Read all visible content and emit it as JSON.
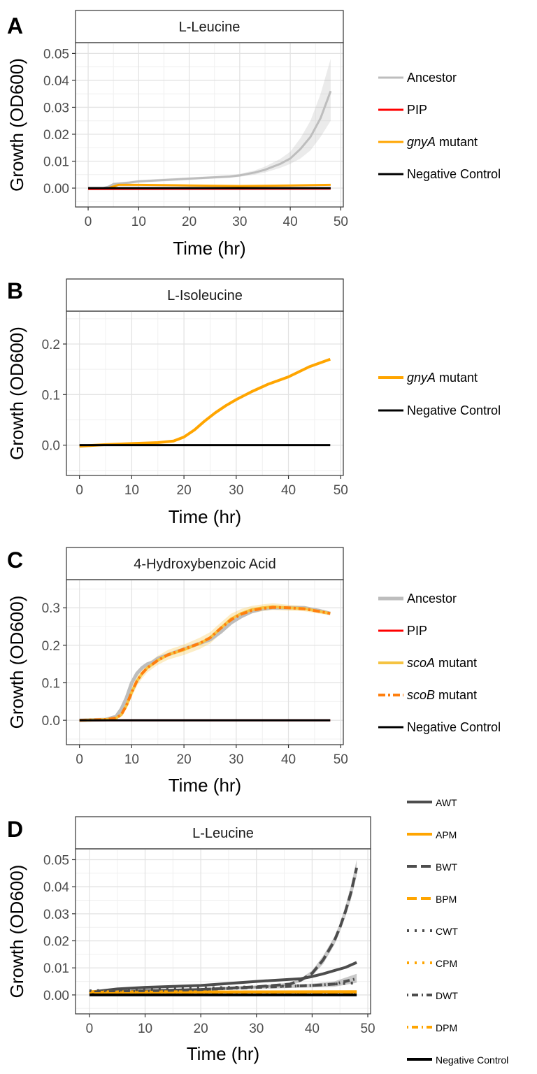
{
  "chart_data": [
    {
      "letter": "A",
      "type": "line",
      "title": "L-Leucine",
      "xlabel": "Time (hr)",
      "ylabel": "Growth (OD600)",
      "xlim": [
        -2.5,
        50.5
      ],
      "ylim": [
        -0.007,
        0.054
      ],
      "xticks": [
        0,
        10,
        20,
        30,
        40,
        50
      ],
      "yticks": [
        0,
        0.01,
        0.02,
        0.03,
        0.04,
        0.05
      ],
      "ytick_labels": [
        "0.00",
        "0.01",
        "0.02",
        "0.03",
        "0.04",
        "0.05"
      ],
      "grid": true,
      "legend_position": "right",
      "series": [
        {
          "name": "Ancestor",
          "color": "#bdbdbd",
          "width": 3,
          "x": [
            0,
            3,
            4,
            5,
            8,
            10,
            15,
            20,
            25,
            28,
            30,
            33,
            35,
            38,
            40,
            42,
            44,
            46,
            48
          ],
          "y": [
            0,
            0,
            0.0005,
            0.0015,
            0.002,
            0.0025,
            0.003,
            0.0035,
            0.004,
            0.0043,
            0.0047,
            0.0058,
            0.0068,
            0.009,
            0.011,
            0.0145,
            0.019,
            0.026,
            0.036
          ],
          "band_lower": [
            0,
            0,
            0.0003,
            0.001,
            0.0015,
            0.002,
            0.0025,
            0.003,
            0.0035,
            0.0038,
            0.0042,
            0.005,
            0.0058,
            0.0075,
            0.009,
            0.011,
            0.014,
            0.019,
            0.025
          ],
          "band_upper": [
            0,
            0,
            0.0007,
            0.002,
            0.0025,
            0.003,
            0.0035,
            0.004,
            0.0045,
            0.0048,
            0.0053,
            0.0066,
            0.008,
            0.0108,
            0.0135,
            0.0185,
            0.025,
            0.035,
            0.048
          ]
        },
        {
          "name": "PIP",
          "color": "#ff0000",
          "width": 3,
          "x": [
            0,
            48
          ],
          "y": [
            -0.0003,
            -0.0002
          ]
        },
        {
          "name": "gnyA mutant",
          "name_italic": "gnyA",
          "name_rest": " mutant",
          "color": "#ffa500",
          "width": 3,
          "x": [
            0,
            4,
            6,
            10,
            20,
            30,
            40,
            48
          ],
          "y": [
            0,
            0,
            0.0012,
            0.0012,
            0.001,
            0.0008,
            0.001,
            0.0012
          ]
        },
        {
          "name": "Negative Control",
          "color": "#000000",
          "width": 3,
          "x": [
            0,
            48
          ],
          "y": [
            0,
            0
          ]
        }
      ]
    },
    {
      "letter": "B",
      "type": "line",
      "title": "L-Isoleucine",
      "xlabel": "Time (hr)",
      "ylabel": "Growth (OD600)",
      "xlim": [
        -2.5,
        50.5
      ],
      "ylim": [
        -0.06,
        0.265
      ],
      "xticks": [
        0,
        10,
        20,
        30,
        40,
        50
      ],
      "yticks": [
        0,
        0.1,
        0.2
      ],
      "ytick_labels": [
        "0.0",
        "0.1",
        "0.2"
      ],
      "grid": true,
      "legend_position": "right",
      "series": [
        {
          "name": "gnyA mutant",
          "name_italic": "gnyA",
          "name_rest": " mutant",
          "color": "#ffa500",
          "width": 4,
          "x": [
            0,
            5,
            10,
            15,
            18,
            20,
            22,
            24,
            26,
            28,
            30,
            33,
            36,
            40,
            44,
            48
          ],
          "y": [
            -0.002,
            0.001,
            0.003,
            0.005,
            0.008,
            0.016,
            0.03,
            0.048,
            0.064,
            0.078,
            0.09,
            0.106,
            0.12,
            0.135,
            0.155,
            0.17
          ]
        },
        {
          "name": "Negative Control",
          "color": "#000000",
          "width": 3,
          "x": [
            0,
            48
          ],
          "y": [
            0,
            0
          ]
        }
      ]
    },
    {
      "letter": "C",
      "type": "line",
      "title": "4-Hydroxybenzoic Acid",
      "xlabel": "Time (hr)",
      "ylabel": "Growth (OD600)",
      "xlim": [
        -2.5,
        50.5
      ],
      "ylim": [
        -0.065,
        0.375
      ],
      "xticks": [
        0,
        10,
        20,
        30,
        40,
        50
      ],
      "yticks": [
        0,
        0.1,
        0.2,
        0.3
      ],
      "ytick_labels": [
        "0.0",
        "0.1",
        "0.2",
        "0.3"
      ],
      "grid": true,
      "legend_position": "right",
      "series": [
        {
          "name": "Ancestor",
          "color": "#bdbdbd",
          "width": 5,
          "x": [
            0,
            5,
            7,
            8,
            9,
            10,
            11,
            12,
            13,
            14,
            15,
            17,
            20,
            23,
            25,
            27,
            29,
            31,
            33,
            35,
            37,
            40,
            43,
            46,
            48
          ],
          "y": [
            0,
            0.002,
            0.01,
            0.03,
            0.06,
            0.1,
            0.125,
            0.14,
            0.15,
            0.155,
            0.165,
            0.175,
            0.19,
            0.205,
            0.215,
            0.235,
            0.26,
            0.277,
            0.29,
            0.297,
            0.3,
            0.3,
            0.3,
            0.292,
            0.285
          ]
        },
        {
          "name": "PIP",
          "color": "#ff0000",
          "width": 3,
          "x": [
            0,
            48
          ],
          "y": [
            0,
            0
          ]
        },
        {
          "name": "scoA mutant",
          "name_italic": "scoA",
          "name_rest": " mutant",
          "color": "#f5c342",
          "width": 4,
          "x": [
            0,
            5,
            7,
            8,
            9,
            10,
            11,
            12,
            13,
            14,
            15,
            17,
            20,
            23,
            25,
            27,
            29,
            31,
            33,
            35,
            37,
            40,
            43,
            46,
            48
          ],
          "y": [
            0,
            0.002,
            0.006,
            0.015,
            0.04,
            0.075,
            0.105,
            0.125,
            0.14,
            0.15,
            0.16,
            0.175,
            0.188,
            0.205,
            0.22,
            0.245,
            0.27,
            0.285,
            0.295,
            0.3,
            0.303,
            0.3,
            0.298,
            0.29,
            0.285
          ],
          "band_lower": [
            0,
            0.001,
            0.004,
            0.01,
            0.03,
            0.062,
            0.092,
            0.112,
            0.128,
            0.138,
            0.148,
            0.162,
            0.174,
            0.19,
            0.205,
            0.23,
            0.256,
            0.273,
            0.285,
            0.291,
            0.294,
            0.292,
            0.291,
            0.284,
            0.28
          ],
          "band_upper": [
            0,
            0.003,
            0.008,
            0.02,
            0.05,
            0.088,
            0.118,
            0.138,
            0.152,
            0.162,
            0.172,
            0.188,
            0.202,
            0.22,
            0.235,
            0.26,
            0.284,
            0.297,
            0.305,
            0.309,
            0.312,
            0.308,
            0.305,
            0.296,
            0.29
          ]
        },
        {
          "name": "scoB mutant",
          "name_italic": "scoB",
          "name_rest": " mutant",
          "color": "#ff7f0e",
          "width": 4,
          "dash": "10 4 3 4",
          "x": [
            0,
            5,
            7,
            8,
            9,
            10,
            11,
            12,
            13,
            14,
            15,
            17,
            20,
            23,
            25,
            27,
            29,
            31,
            33,
            35,
            37,
            40,
            43,
            46,
            48
          ],
          "y": [
            0,
            0.002,
            0.006,
            0.015,
            0.04,
            0.075,
            0.105,
            0.125,
            0.14,
            0.15,
            0.16,
            0.175,
            0.19,
            0.205,
            0.22,
            0.245,
            0.268,
            0.283,
            0.293,
            0.298,
            0.301,
            0.3,
            0.297,
            0.29,
            0.285
          ]
        },
        {
          "name": "Negative Control",
          "color": "#000000",
          "width": 3,
          "x": [
            0,
            48
          ],
          "y": [
            0,
            0
          ]
        }
      ]
    },
    {
      "letter": "D",
      "type": "line",
      "title": "L-Leucine",
      "xlabel": "Time (hr)",
      "ylabel": "Growth (OD600)",
      "xlim": [
        -2.5,
        50.5
      ],
      "ylim": [
        -0.007,
        0.054
      ],
      "xticks": [
        0,
        10,
        20,
        30,
        40,
        50
      ],
      "yticks": [
        0,
        0.01,
        0.02,
        0.03,
        0.04,
        0.05
      ],
      "ytick_labels": [
        "0.00",
        "0.01",
        "0.02",
        "0.03",
        "0.04",
        "0.05"
      ],
      "grid": true,
      "legend_position": "right",
      "series": [
        {
          "name": "AWT",
          "color": "#4d4d4d",
          "width": 4,
          "x": [
            0,
            5,
            10,
            20,
            30,
            38,
            40,
            42,
            44,
            46,
            48
          ],
          "y": [
            0.001,
            0.0022,
            0.0028,
            0.0035,
            0.005,
            0.006,
            0.0068,
            0.0078,
            0.009,
            0.0102,
            0.012
          ]
        },
        {
          "name": "APM",
          "color": "#ffa500",
          "width": 4,
          "x": [
            0,
            48
          ],
          "y": [
            0.001,
            0.0012
          ]
        },
        {
          "name": "BWT",
          "color": "#4d4d4d",
          "width": 4,
          "dash": "14 6",
          "x": [
            0,
            10,
            20,
            30,
            36,
            38,
            40,
            42,
            44,
            45,
            46,
            47,
            48
          ],
          "y": [
            0.001,
            0.0015,
            0.002,
            0.003,
            0.004,
            0.0055,
            0.008,
            0.013,
            0.02,
            0.025,
            0.031,
            0.038,
            0.047
          ],
          "band_lower": [
            0.0005,
            0.001,
            0.0015,
            0.0025,
            0.0035,
            0.0048,
            0.007,
            0.0115,
            0.0185,
            0.0235,
            0.029,
            0.0355,
            0.044
          ],
          "band_upper": [
            0.0015,
            0.002,
            0.0025,
            0.0035,
            0.0045,
            0.0062,
            0.009,
            0.0145,
            0.0215,
            0.0265,
            0.033,
            0.0405,
            0.05
          ]
        },
        {
          "name": "BPM",
          "color": "#ffa500",
          "width": 4,
          "dash": "14 6",
          "x": [
            0,
            48
          ],
          "y": [
            0.0012,
            0.0011
          ]
        },
        {
          "name": "CWT",
          "color": "#4d4d4d",
          "width": 4,
          "dash": "3 8",
          "x": [
            0,
            10,
            20,
            30,
            40,
            44,
            48
          ],
          "y": [
            0.0015,
            0.002,
            0.0025,
            0.003,
            0.0035,
            0.004,
            0.0045
          ]
        },
        {
          "name": "CPM",
          "color": "#ffa500",
          "width": 4,
          "dash": "3 8",
          "x": [
            0,
            48
          ],
          "y": [
            0.0008,
            0.001
          ]
        },
        {
          "name": "DWT",
          "color": "#4d4d4d",
          "width": 4,
          "dash": "2 5 9 5",
          "x": [
            0,
            10,
            20,
            30,
            40,
            44,
            48
          ],
          "y": [
            0.001,
            0.0015,
            0.002,
            0.0028,
            0.0035,
            0.004,
            0.006
          ],
          "band_lower": [
            0.0005,
            0.001,
            0.0015,
            0.0022,
            0.0028,
            0.003,
            0.0045
          ],
          "band_upper": [
            0.0015,
            0.002,
            0.0025,
            0.0034,
            0.0042,
            0.005,
            0.0078
          ]
        },
        {
          "name": "DPM",
          "color": "#ffa500",
          "width": 4,
          "dash": "2 5 9 5",
          "x": [
            0,
            48
          ],
          "y": [
            0.0005,
            0.0006
          ]
        },
        {
          "name": "Negative Control",
          "color": "#000000",
          "width": 4,
          "legend_small": true,
          "x": [
            0,
            48
          ],
          "y": [
            0,
            0
          ]
        }
      ]
    }
  ]
}
